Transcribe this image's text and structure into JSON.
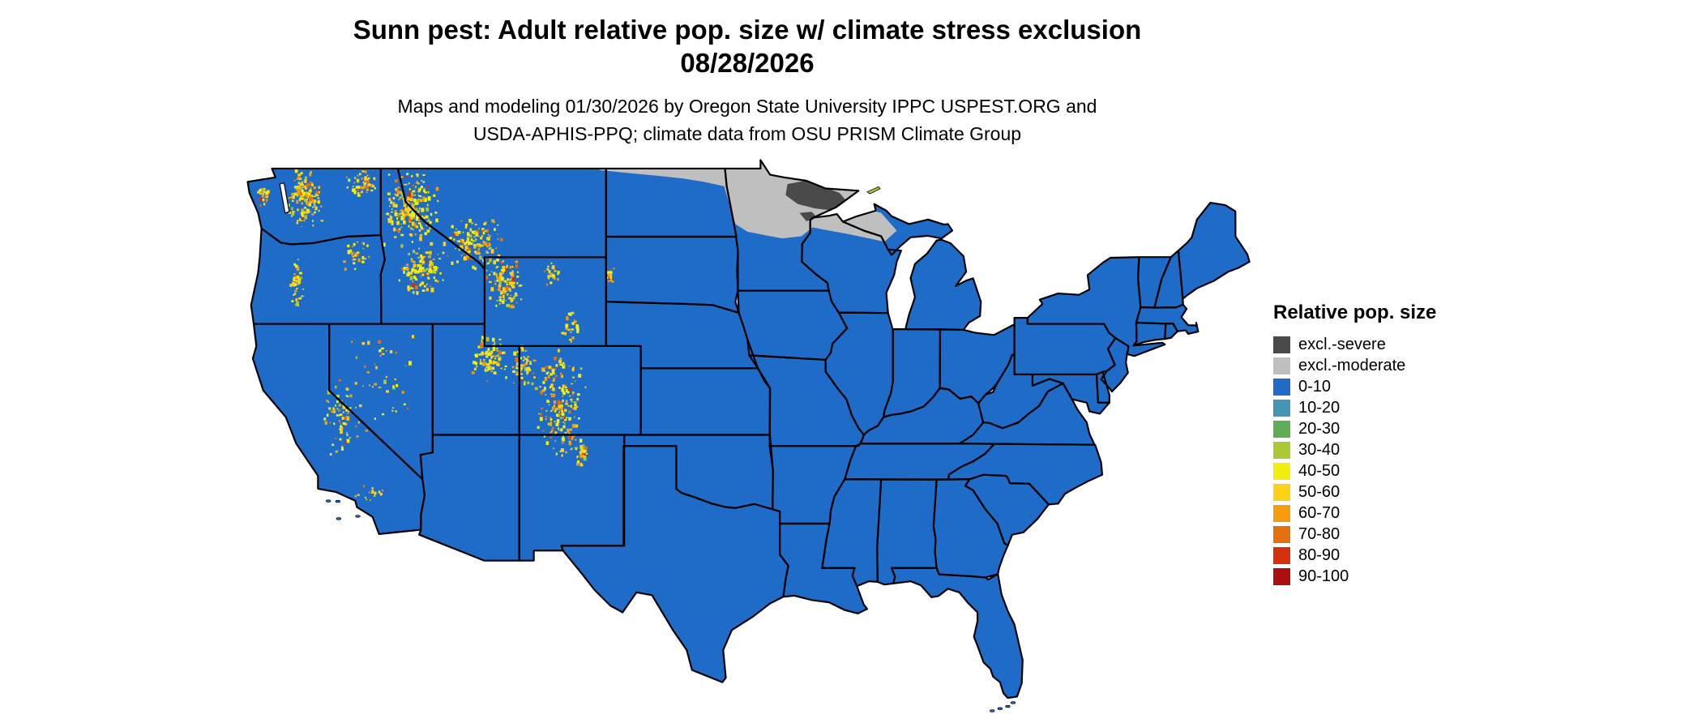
{
  "header": {
    "title": "Sunn pest: Adult relative pop. size w/ climate stress exclusion",
    "date": "08/28/2026",
    "subtitle_line1": "Maps and modeling 01/30/2026 by Oregon State University IPPC USPEST.ORG and",
    "subtitle_line2": "USDA-APHIS-PPQ; climate data from OSU PRISM Climate Group"
  },
  "legend": {
    "title": "Relative pop. size",
    "items": [
      {
        "label": "excl.-severe",
        "color": "#4a4a4a"
      },
      {
        "label": "excl.-moderate",
        "color": "#bfbfbf"
      },
      {
        "label": "0-10",
        "color": "#1e6bc8"
      },
      {
        "label": "10-20",
        "color": "#4596b5"
      },
      {
        "label": "20-30",
        "color": "#5fad56"
      },
      {
        "label": "30-40",
        "color": "#abc837"
      },
      {
        "label": "40-50",
        "color": "#f0ef0f"
      },
      {
        "label": "50-60",
        "color": "#fcd116"
      },
      {
        "label": "60-70",
        "color": "#f59d0f"
      },
      {
        "label": "70-80",
        "color": "#e4700e"
      },
      {
        "label": "80-90",
        "color": "#d62f0e"
      },
      {
        "label": "90-100",
        "color": "#ad0f0f"
      }
    ]
  },
  "map": {
    "base_class": "0-10",
    "exclusion_zones": [
      {
        "class": "excl.-moderate",
        "region": "Northern Plains and Upper Midwest",
        "ring": [
          [
            -104.4,
            49.2
          ],
          [
            -97.2,
            49.2
          ],
          [
            -95.15,
            49.45
          ],
          [
            -94.6,
            48.75
          ],
          [
            -92.5,
            48.5
          ],
          [
            -89.4,
            48.1
          ],
          [
            -89.9,
            47.4
          ],
          [
            -88.2,
            47.0
          ],
          [
            -87.3,
            46.2
          ],
          [
            -88.0,
            45.7
          ],
          [
            -88.9,
            45.85
          ],
          [
            -90.1,
            46.05
          ],
          [
            -91.2,
            46.2
          ],
          [
            -92.15,
            46.35
          ],
          [
            -92.8,
            45.95
          ],
          [
            -93.9,
            45.85
          ],
          [
            -94.9,
            46.0
          ],
          [
            -95.9,
            46.15
          ],
          [
            -96.6,
            46.5
          ],
          [
            -96.9,
            47.3
          ],
          [
            -97.25,
            48.2
          ],
          [
            -98.4,
            48.4
          ],
          [
            -99.6,
            48.55
          ],
          [
            -101.2,
            48.68
          ],
          [
            -102.8,
            48.8
          ],
          [
            -104.4,
            48.93
          ]
        ]
      },
      {
        "class": "excl.-severe",
        "region": "Northeastern Minnesota",
        "ring": [
          [
            -93.6,
            48.3
          ],
          [
            -92.6,
            48.45
          ],
          [
            -91.6,
            48.2
          ],
          [
            -90.6,
            47.9
          ],
          [
            -90.1,
            47.45
          ],
          [
            -90.9,
            47.1
          ],
          [
            -92.0,
            47.2
          ],
          [
            -93.0,
            47.4
          ],
          [
            -93.7,
            47.8
          ]
        ]
      },
      {
        "class": "excl.-severe",
        "region": "Duluth area",
        "ring": [
          [
            -92.9,
            47.0
          ],
          [
            -92.2,
            47.05
          ],
          [
            -91.9,
            46.8
          ],
          [
            -92.5,
            46.62
          ]
        ]
      }
    ],
    "stress_clusters": [
      {
        "region": "Washington Cascades",
        "lon": [
          -122.4,
          -120.3
        ],
        "lat": [
          46.3,
          49.0
        ],
        "dots": 150
      },
      {
        "region": "Olympic Mountains",
        "lon": [
          -124.3,
          -123.3
        ],
        "lat": [
          47.2,
          48.3
        ],
        "dots": 25
      },
      {
        "region": "Northeast Washington",
        "lon": [
          -119.3,
          -117.1
        ],
        "lat": [
          47.6,
          49.0
        ],
        "dots": 45
      },
      {
        "region": "Oregon Cascades",
        "lon": [
          -122.3,
          -121.4
        ],
        "lat": [
          42.6,
          45.2
        ],
        "dots": 40
      },
      {
        "region": "Blue Mountains",
        "lon": [
          -119.3,
          -117.6
        ],
        "lat": [
          44.3,
          45.9
        ],
        "dots": 30
      },
      {
        "region": "Idaho Panhandle / Bitterroots",
        "lon": [
          -116.9,
          -113.6
        ],
        "lat": [
          45.4,
          48.9
        ],
        "dots": 230
      },
      {
        "region": "Central Idaho",
        "lon": [
          -116.0,
          -113.4
        ],
        "lat": [
          43.3,
          45.5
        ],
        "dots": 120
      },
      {
        "region": "Southwest Montana",
        "lon": [
          -113.6,
          -109.8
        ],
        "lat": [
          44.4,
          46.9
        ],
        "dots": 140
      },
      {
        "region": "Greater Yellowstone / Wyoming ranges",
        "lon": [
          -111.0,
          -108.7
        ],
        "lat": [
          42.4,
          44.9
        ],
        "dots": 110
      },
      {
        "region": "Bighorn Mountains",
        "lon": [
          -107.6,
          -106.7
        ],
        "lat": [
          43.7,
          44.8
        ],
        "dots": 28
      },
      {
        "region": "Black Hills",
        "lon": [
          -104.1,
          -103.5
        ],
        "lat": [
          43.8,
          44.6
        ],
        "dots": 16
      },
      {
        "region": "Medicine Bow / Laramie",
        "lon": [
          -106.8,
          -105.4
        ],
        "lat": [
          41.0,
          42.6
        ],
        "dots": 26
      },
      {
        "region": "Wasatch / Uinta",
        "lon": [
          -111.8,
          -109.6
        ],
        "lat": [
          39.2,
          41.8
        ],
        "dots": 90
      },
      {
        "region": "Northwest Colorado",
        "lon": [
          -109.6,
          -108.0
        ],
        "lat": [
          39.0,
          41.0
        ],
        "dots": 60
      },
      {
        "region": "Colorado Rockies",
        "lon": [
          -108.2,
          -105.2
        ],
        "lat": [
          36.0,
          41.0
        ],
        "dots": 200
      },
      {
        "region": "Sangre de Cristo (N New Mexico)",
        "lon": [
          -105.9,
          -105.0
        ],
        "lat": [
          35.5,
          36.9
        ],
        "dots": 24
      },
      {
        "region": "Nevada ranges",
        "lon": [
          -119.6,
          -114.6
        ],
        "lat": [
          36.3,
          41.7
        ],
        "dots": 48
      },
      {
        "region": "Sierra Nevada",
        "lon": [
          -120.4,
          -118.3
        ],
        "lat": [
          35.9,
          39.6
        ],
        "dots": 65
      },
      {
        "region": "Southern California mountains",
        "lon": [
          -118.9,
          -116.4
        ],
        "lat": [
          33.9,
          34.9
        ],
        "dots": 16
      }
    ],
    "speckle_palette": [
      {
        "class": "30-40",
        "weight": 0.08
      },
      {
        "class": "40-50",
        "weight": 0.34
      },
      {
        "class": "50-60",
        "weight": 0.3
      },
      {
        "class": "60-70",
        "weight": 0.18
      },
      {
        "class": "70-80",
        "weight": 0.08
      },
      {
        "class": "80-90",
        "weight": 0.02
      }
    ],
    "islands": [
      {
        "name": "Isle Royale",
        "class": "30-40",
        "ring": [
          [
            -89.0,
            47.95
          ],
          [
            -88.35,
            48.18
          ],
          [
            -88.25,
            48.09
          ],
          [
            -88.85,
            47.86
          ]
        ]
      },
      {
        "name": "Channel Islands",
        "class": "0-10",
        "dots": [
          [
            -120.05,
            34.02
          ],
          [
            -119.5,
            34.0
          ],
          [
            -119.45,
            33.22
          ],
          [
            -118.35,
            33.33
          ]
        ]
      },
      {
        "name": "Florida Keys",
        "class": "0-10",
        "dots": [
          [
            -81.8,
            24.56
          ],
          [
            -81.35,
            24.66
          ],
          [
            -80.9,
            24.76
          ],
          [
            -80.6,
            24.93
          ]
        ]
      }
    ]
  }
}
